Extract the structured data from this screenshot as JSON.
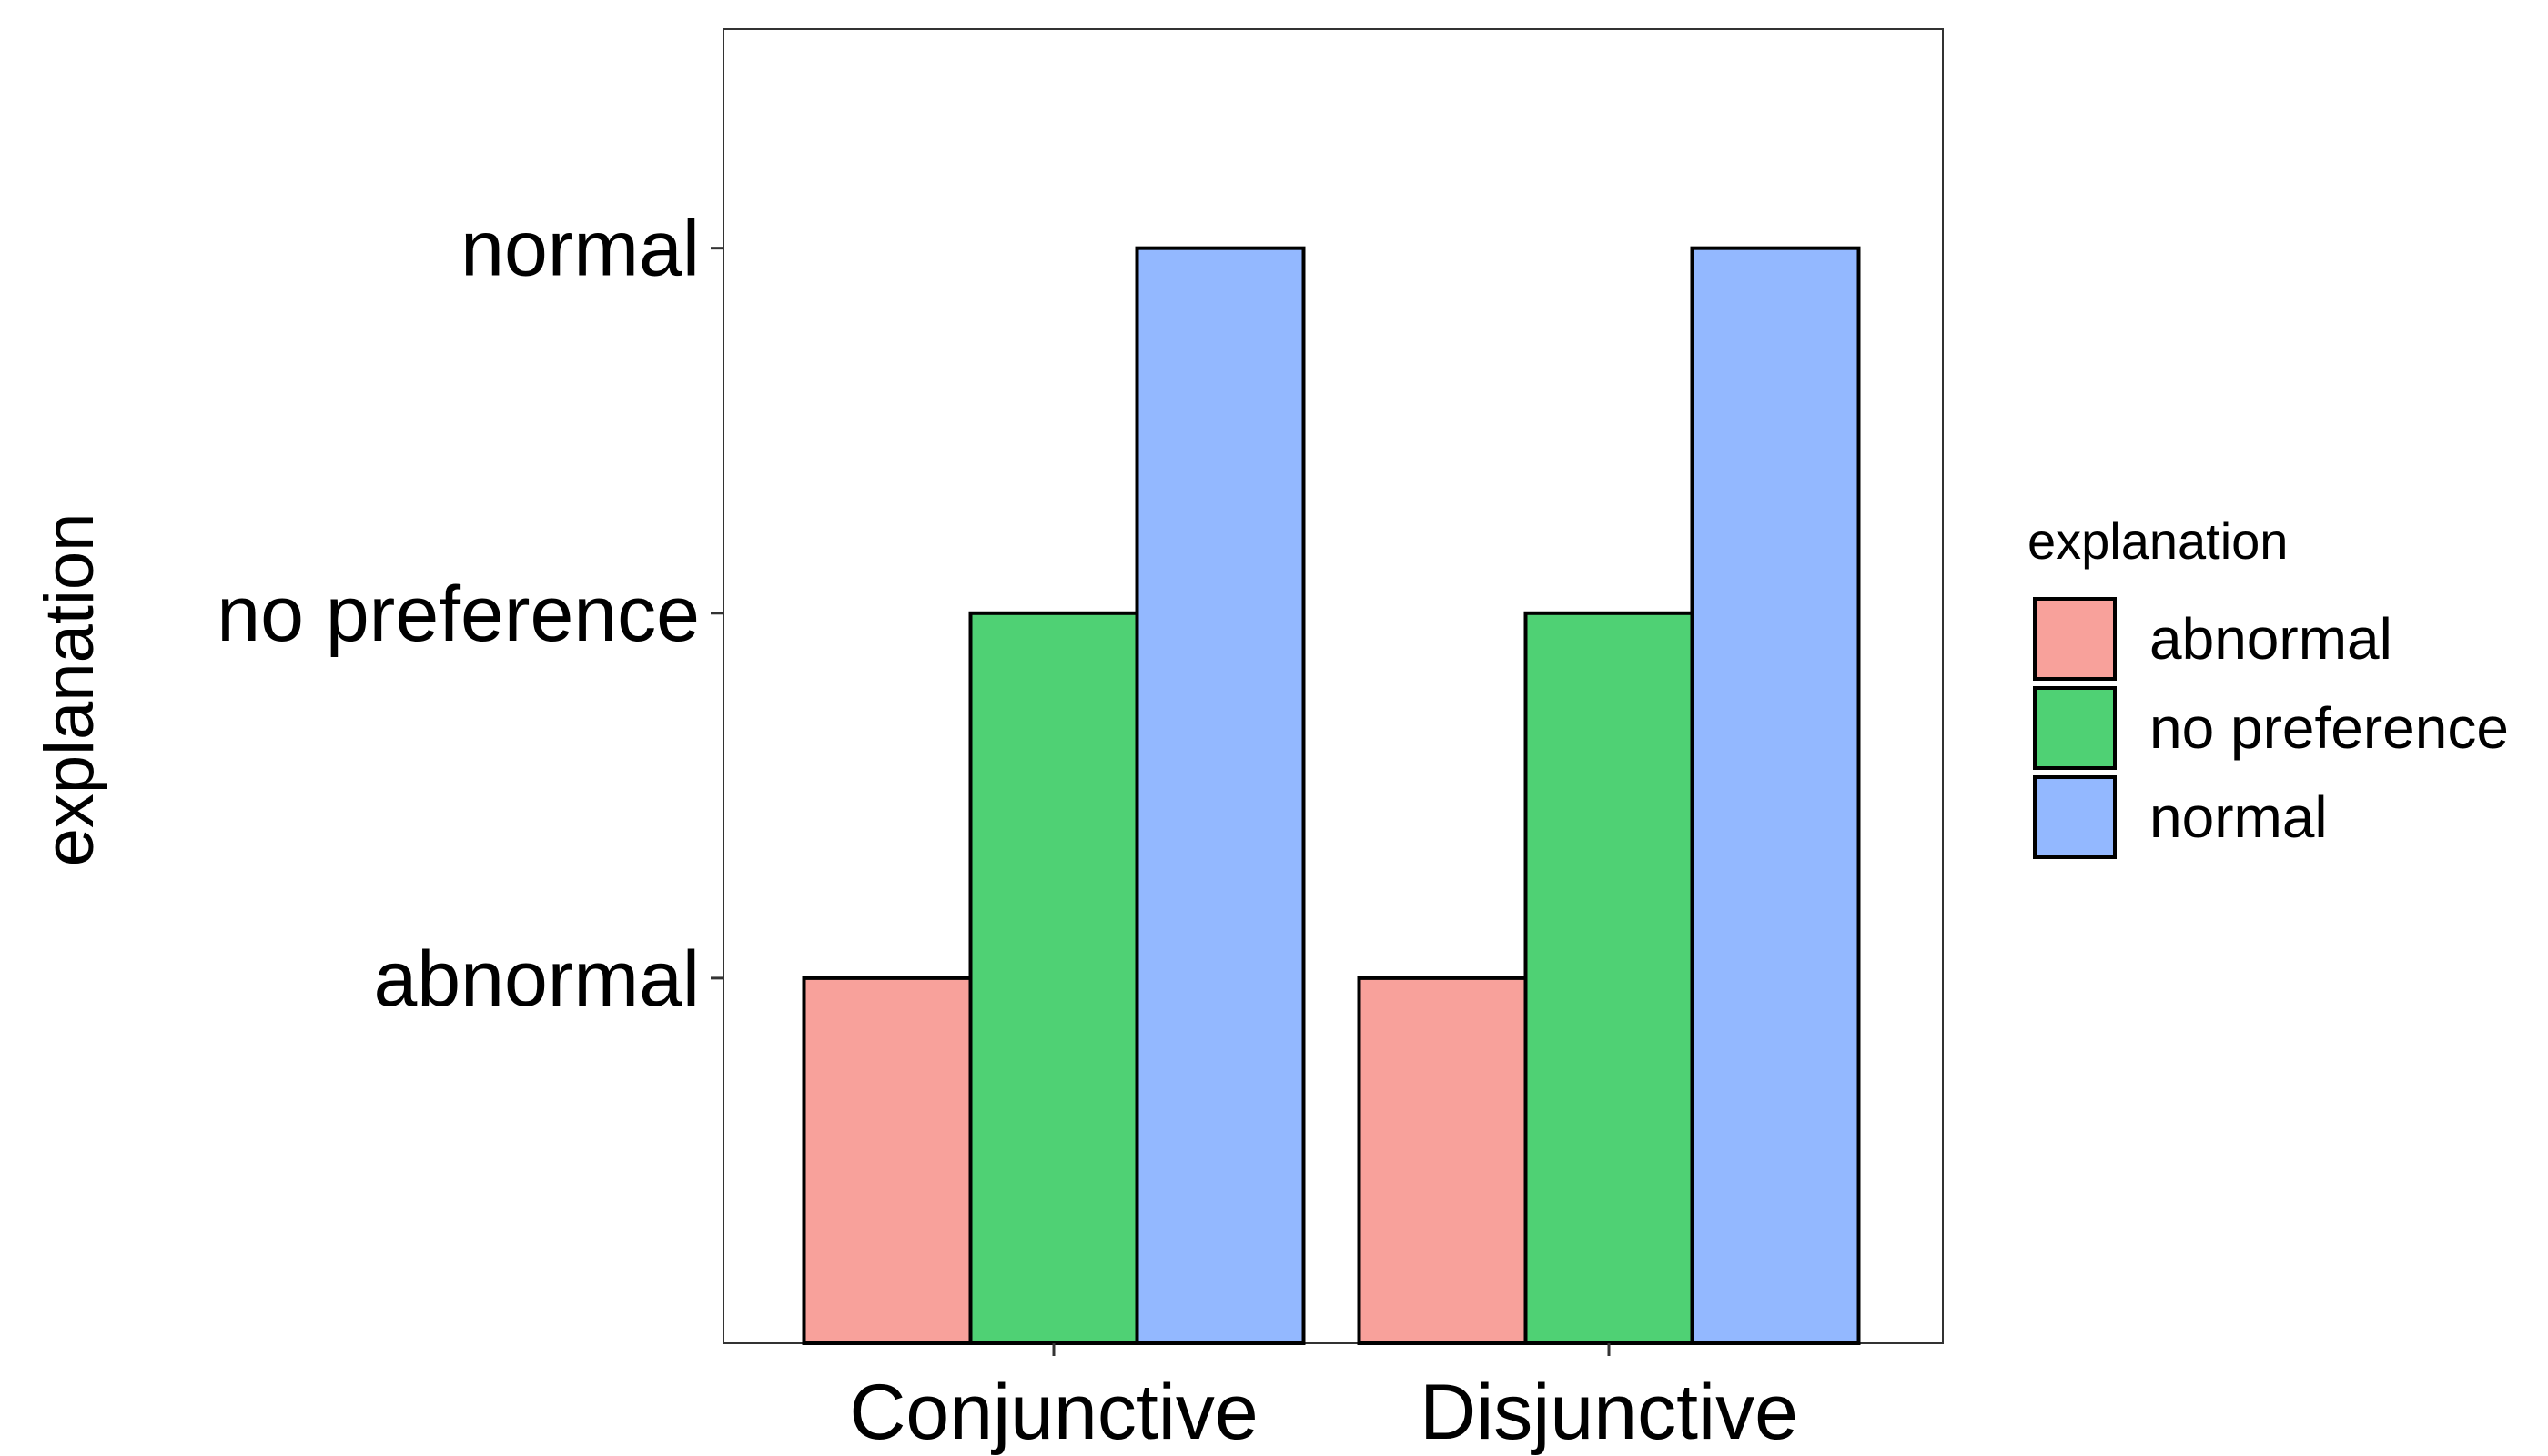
{
  "chart_data": {
    "type": "bar",
    "title": "",
    "xlabel": "",
    "ylabel": "explanation",
    "categories": [
      "Conjunctive",
      "Disjunctive"
    ],
    "y_levels": [
      "abnormal",
      "no preference",
      "normal"
    ],
    "series": [
      {
        "name": "abnormal",
        "color": "#F8A19B",
        "values": [
          1,
          1
        ]
      },
      {
        "name": "no preference",
        "color": "#4FD174",
        "values": [
          2,
          2
        ]
      },
      {
        "name": "normal",
        "color": "#93B8FF",
        "values": [
          3,
          3
        ]
      }
    ],
    "ylim": [
      0,
      3.6
    ],
    "grid": false,
    "legend": {
      "title": "explanation",
      "position": "right"
    }
  }
}
